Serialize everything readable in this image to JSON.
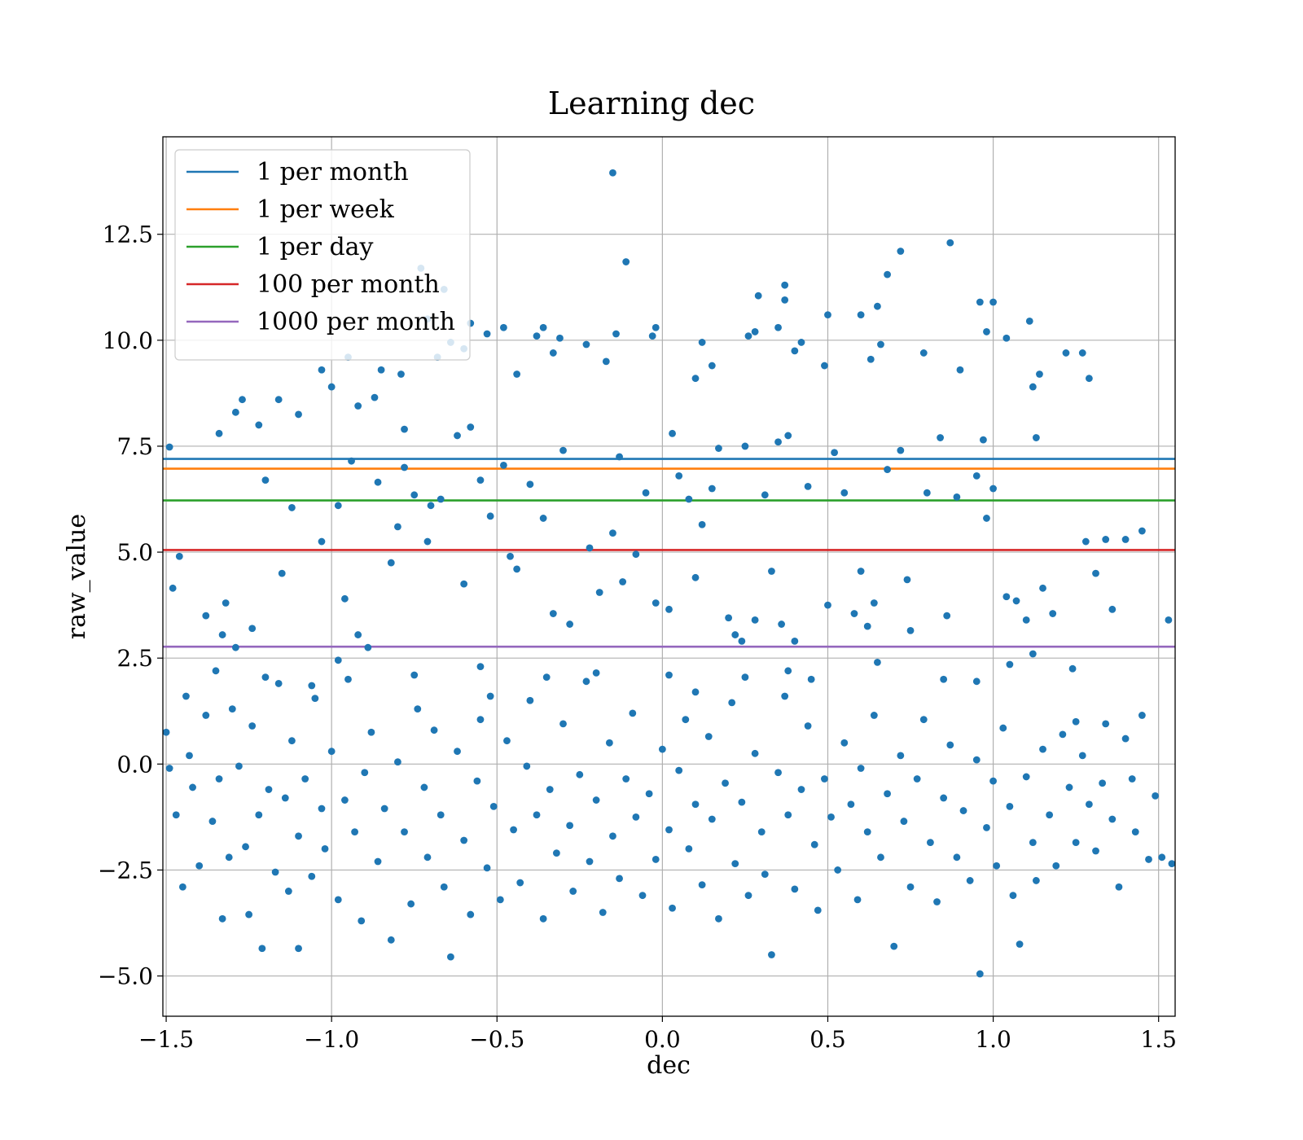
{
  "chart_data": {
    "type": "scatter",
    "title": "Learning dec",
    "xlabel": "dec",
    "ylabel": "raw_value",
    "xlim": [
      -1.51,
      1.55
    ],
    "ylim": [
      -5.95,
      14.8
    ],
    "grid": true,
    "legend_placement": "upper-left",
    "xticks": [
      {
        "value": -1.5,
        "label": "−1.5"
      },
      {
        "value": -1.0,
        "label": "−1.0"
      },
      {
        "value": -0.5,
        "label": "−0.5"
      },
      {
        "value": 0.0,
        "label": "0.0"
      },
      {
        "value": 0.5,
        "label": "0.5"
      },
      {
        "value": 1.0,
        "label": "1.0"
      },
      {
        "value": 1.5,
        "label": "1.5"
      }
    ],
    "yticks": [
      {
        "value": -5.0,
        "label": "−5.0"
      },
      {
        "value": -2.5,
        "label": "−2.5"
      },
      {
        "value": 0.0,
        "label": "0.0"
      },
      {
        "value": 2.5,
        "label": "2.5"
      },
      {
        "value": 5.0,
        "label": "5.0"
      },
      {
        "value": 7.5,
        "label": "7.5"
      },
      {
        "value": 10.0,
        "label": "10.0"
      },
      {
        "value": 12.5,
        "label": "12.5"
      }
    ],
    "reference_lines": [
      {
        "name": "1 per month",
        "y": 7.2,
        "color": "#1f77b4"
      },
      {
        "name": "1 per week",
        "y": 6.97,
        "color": "#ff7f0e"
      },
      {
        "name": "1 per day",
        "y": 6.22,
        "color": "#2ca02c"
      },
      {
        "name": "100 per month",
        "y": 5.05,
        "color": "#d62728"
      },
      {
        "name": "1000 per month",
        "y": 2.77,
        "color": "#9467bd"
      }
    ],
    "scatter_color": "#1f77b4",
    "scatter_points": [
      [
        -1.49,
        7.48
      ],
      [
        -1.46,
        4.9
      ],
      [
        -1.48,
        4.15
      ],
      [
        -1.34,
        7.8
      ],
      [
        -1.29,
        8.3
      ],
      [
        -1.27,
        8.6
      ],
      [
        -1.22,
        8.0
      ],
      [
        -1.16,
        8.6
      ],
      [
        -1.1,
        8.25
      ],
      [
        -1.03,
        9.3
      ],
      [
        -1.0,
        8.9
      ],
      [
        -0.95,
        9.6
      ],
      [
        -0.92,
        8.45
      ],
      [
        -0.87,
        8.65
      ],
      [
        -0.85,
        9.3
      ],
      [
        -0.79,
        9.2
      ],
      [
        -0.78,
        7.9
      ],
      [
        -0.73,
        11.7
      ],
      [
        -0.71,
        10.5
      ],
      [
        -0.68,
        9.6
      ],
      [
        -0.66,
        11.2
      ],
      [
        -0.64,
        9.95
      ],
      [
        -0.6,
        9.8
      ],
      [
        -0.58,
        10.4
      ],
      [
        -0.53,
        10.15
      ],
      [
        -0.48,
        10.3
      ],
      [
        -0.44,
        9.2
      ],
      [
        -0.38,
        10.1
      ],
      [
        -0.36,
        10.3
      ],
      [
        -0.33,
        9.7
      ],
      [
        -0.31,
        10.05
      ],
      [
        -0.23,
        9.9
      ],
      [
        -0.17,
        9.5
      ],
      [
        -0.15,
        13.95
      ],
      [
        -0.14,
        10.15
      ],
      [
        -0.11,
        11.85
      ],
      [
        -0.03,
        10.1
      ],
      [
        -0.02,
        10.3
      ],
      [
        0.1,
        9.1
      ],
      [
        0.12,
        9.95
      ],
      [
        0.15,
        9.4
      ],
      [
        0.26,
        10.1
      ],
      [
        0.28,
        10.2
      ],
      [
        0.29,
        11.05
      ],
      [
        0.35,
        10.3
      ],
      [
        0.37,
        11.3
      ],
      [
        0.37,
        10.95
      ],
      [
        0.4,
        9.75
      ],
      [
        0.42,
        9.95
      ],
      [
        0.49,
        9.4
      ],
      [
        0.5,
        10.6
      ],
      [
        0.6,
        10.6
      ],
      [
        0.63,
        9.55
      ],
      [
        0.65,
        10.8
      ],
      [
        0.66,
        9.9
      ],
      [
        0.68,
        11.55
      ],
      [
        0.72,
        12.1
      ],
      [
        0.79,
        9.7
      ],
      [
        0.87,
        12.3
      ],
      [
        0.9,
        9.3
      ],
      [
        0.96,
        10.9
      ],
      [
        0.98,
        10.2
      ],
      [
        1.0,
        10.9
      ],
      [
        1.04,
        10.05
      ],
      [
        1.11,
        10.45
      ],
      [
        1.12,
        8.9
      ],
      [
        1.14,
        9.2
      ],
      [
        1.22,
        9.7
      ],
      [
        1.27,
        9.7
      ],
      [
        1.29,
        9.1
      ],
      [
        -1.44,
        1.6
      ],
      [
        -1.38,
        3.5
      ],
      [
        -1.33,
        3.05
      ],
      [
        -1.32,
        3.8
      ],
      [
        -1.29,
        2.75
      ],
      [
        -1.24,
        3.2
      ],
      [
        -1.15,
        4.5
      ],
      [
        -1.03,
        5.25
      ],
      [
        -0.98,
        6.1
      ],
      [
        -0.96,
        3.9
      ],
      [
        -0.92,
        3.05
      ],
      [
        -0.89,
        2.75
      ],
      [
        -0.82,
        4.75
      ],
      [
        -0.8,
        5.6
      ],
      [
        -0.75,
        6.35
      ],
      [
        -0.71,
        5.25
      ],
      [
        -0.7,
        6.1
      ],
      [
        -0.67,
        6.25
      ],
      [
        -0.6,
        4.25
      ],
      [
        -0.55,
        6.7
      ],
      [
        -0.52,
        5.85
      ],
      [
        -0.48,
        7.05
      ],
      [
        -0.46,
        4.9
      ],
      [
        -0.44,
        4.6
      ],
      [
        -0.4,
        6.6
      ],
      [
        -0.36,
        5.8
      ],
      [
        -0.33,
        3.55
      ],
      [
        -0.28,
        3.3
      ],
      [
        -0.22,
        5.1
      ],
      [
        -0.19,
        4.05
      ],
      [
        -0.15,
        5.45
      ],
      [
        -0.12,
        4.3
      ],
      [
        -0.08,
        4.95
      ],
      [
        -0.05,
        6.4
      ],
      [
        -0.02,
        3.8
      ],
      [
        0.02,
        3.65
      ],
      [
        0.05,
        6.8
      ],
      [
        0.08,
        6.25
      ],
      [
        0.1,
        4.4
      ],
      [
        0.12,
        5.65
      ],
      [
        0.15,
        6.5
      ],
      [
        0.2,
        3.45
      ],
      [
        0.22,
        3.05
      ],
      [
        0.24,
        2.9
      ],
      [
        0.28,
        3.4
      ],
      [
        0.31,
        6.35
      ],
      [
        0.33,
        4.55
      ],
      [
        0.36,
        3.3
      ],
      [
        0.4,
        2.9
      ],
      [
        0.44,
        6.55
      ],
      [
        0.5,
        3.75
      ],
      [
        0.55,
        6.4
      ],
      [
        0.58,
        3.55
      ],
      [
        0.6,
        4.55
      ],
      [
        0.62,
        3.25
      ],
      [
        0.64,
        3.8
      ],
      [
        0.68,
        6.95
      ],
      [
        0.74,
        4.35
      ],
      [
        0.75,
        3.15
      ],
      [
        0.8,
        6.4
      ],
      [
        0.86,
        3.5
      ],
      [
        0.89,
        6.3
      ],
      [
        0.95,
        6.8
      ],
      [
        0.98,
        5.8
      ],
      [
        1.0,
        6.5
      ],
      [
        1.04,
        3.95
      ],
      [
        1.07,
        3.85
      ],
      [
        1.1,
        3.4
      ],
      [
        1.12,
        2.6
      ],
      [
        1.15,
        4.15
      ],
      [
        1.18,
        3.55
      ],
      [
        1.28,
        5.25
      ],
      [
        1.31,
        4.5
      ],
      [
        1.34,
        5.3
      ],
      [
        1.36,
        3.65
      ],
      [
        1.4,
        5.3
      ],
      [
        1.45,
        5.5
      ],
      [
        1.53,
        3.4
      ],
      [
        -1.2,
        6.7
      ],
      [
        -1.12,
        6.05
      ],
      [
        -0.94,
        7.15
      ],
      [
        -0.86,
        6.65
      ],
      [
        -0.78,
        7.0
      ],
      [
        -0.62,
        7.75
      ],
      [
        -0.58,
        7.95
      ],
      [
        -0.3,
        7.4
      ],
      [
        -0.13,
        7.25
      ],
      [
        0.03,
        7.8
      ],
      [
        0.17,
        7.45
      ],
      [
        0.25,
        7.5
      ],
      [
        0.35,
        7.6
      ],
      [
        0.38,
        7.75
      ],
      [
        0.52,
        7.35
      ],
      [
        0.72,
        7.4
      ],
      [
        0.84,
        7.7
      ],
      [
        0.97,
        7.65
      ],
      [
        1.13,
        7.7
      ],
      [
        -1.49,
        -0.1
      ],
      [
        -1.5,
        0.75
      ],
      [
        -1.47,
        -1.2
      ],
      [
        -1.45,
        -2.9
      ],
      [
        -1.43,
        0.2
      ],
      [
        -1.42,
        -0.55
      ],
      [
        -1.4,
        -2.4
      ],
      [
        -1.38,
        1.15
      ],
      [
        -1.36,
        -1.35
      ],
      [
        -1.34,
        -0.35
      ],
      [
        -1.33,
        -3.65
      ],
      [
        -1.31,
        -2.2
      ],
      [
        -1.3,
        1.3
      ],
      [
        -1.28,
        -0.05
      ],
      [
        -1.26,
        -1.95
      ],
      [
        -1.25,
        -3.55
      ],
      [
        -1.24,
        0.9
      ],
      [
        -1.22,
        -1.2
      ],
      [
        -1.21,
        -4.35
      ],
      [
        -1.19,
        -0.6
      ],
      [
        -1.17,
        -2.55
      ],
      [
        -1.16,
        1.9
      ],
      [
        -1.14,
        -0.8
      ],
      [
        -1.13,
        -3.0
      ],
      [
        -1.12,
        0.55
      ],
      [
        -1.1,
        -1.7
      ],
      [
        -1.1,
        -4.35
      ],
      [
        -1.08,
        -0.35
      ],
      [
        -1.06,
        -2.65
      ],
      [
        -1.05,
        1.55
      ],
      [
        -1.03,
        -1.05
      ],
      [
        -1.02,
        -2.0
      ],
      [
        -1.0,
        0.3
      ],
      [
        -0.98,
        -3.2
      ],
      [
        -0.96,
        -0.85
      ],
      [
        -0.95,
        2.0
      ],
      [
        -0.93,
        -1.6
      ],
      [
        -0.91,
        -3.7
      ],
      [
        -0.9,
        -0.2
      ],
      [
        -0.88,
        0.75
      ],
      [
        -0.86,
        -2.3
      ],
      [
        -0.84,
        -1.05
      ],
      [
        -0.82,
        -4.15
      ],
      [
        -0.8,
        0.05
      ],
      [
        -0.78,
        -1.6
      ],
      [
        -0.76,
        -3.3
      ],
      [
        -0.74,
        1.3
      ],
      [
        -0.72,
        -0.55
      ],
      [
        -0.71,
        -2.2
      ],
      [
        -0.69,
        0.8
      ],
      [
        -0.67,
        -1.2
      ],
      [
        -0.66,
        -2.9
      ],
      [
        -0.64,
        -4.55
      ],
      [
        -0.62,
        0.3
      ],
      [
        -0.6,
        -1.8
      ],
      [
        -0.58,
        -3.55
      ],
      [
        -0.56,
        -0.4
      ],
      [
        -0.55,
        1.05
      ],
      [
        -0.53,
        -2.45
      ],
      [
        -0.51,
        -1.0
      ],
      [
        -0.49,
        -3.2
      ],
      [
        -0.47,
        0.55
      ],
      [
        -0.45,
        -1.55
      ],
      [
        -0.43,
        -2.8
      ],
      [
        -0.41,
        -0.05
      ],
      [
        -0.4,
        1.5
      ],
      [
        -0.38,
        -1.2
      ],
      [
        -0.36,
        -3.65
      ],
      [
        -0.34,
        -0.6
      ],
      [
        -0.32,
        -2.1
      ],
      [
        -0.3,
        0.95
      ],
      [
        -0.28,
        -1.45
      ],
      [
        -0.27,
        -3.0
      ],
      [
        -0.25,
        -0.25
      ],
      [
        -0.23,
        1.95
      ],
      [
        -0.22,
        -2.3
      ],
      [
        -0.2,
        -0.85
      ],
      [
        -0.18,
        -3.5
      ],
      [
        -0.16,
        0.5
      ],
      [
        -0.15,
        -1.7
      ],
      [
        -0.13,
        -2.7
      ],
      [
        -0.11,
        -0.35
      ],
      [
        -0.09,
        1.2
      ],
      [
        -0.08,
        -1.25
      ],
      [
        -0.06,
        -3.1
      ],
      [
        -0.04,
        -0.7
      ],
      [
        -0.02,
        -2.25
      ],
      [
        0.0,
        0.35
      ],
      [
        0.02,
        -1.55
      ],
      [
        0.03,
        -3.4
      ],
      [
        0.05,
        -0.15
      ],
      [
        0.07,
        1.05
      ],
      [
        0.08,
        -2.0
      ],
      [
        0.1,
        -0.95
      ],
      [
        0.12,
        -2.85
      ],
      [
        0.14,
        0.65
      ],
      [
        0.15,
        -1.3
      ],
      [
        0.17,
        -3.65
      ],
      [
        0.19,
        -0.45
      ],
      [
        0.21,
        1.45
      ],
      [
        0.22,
        -2.35
      ],
      [
        0.24,
        -0.9
      ],
      [
        0.26,
        -3.1
      ],
      [
        0.28,
        0.25
      ],
      [
        0.3,
        -1.6
      ],
      [
        0.31,
        -2.6
      ],
      [
        0.33,
        -4.5
      ],
      [
        0.35,
        -0.2
      ],
      [
        0.37,
        1.6
      ],
      [
        0.38,
        -1.2
      ],
      [
        0.4,
        -2.95
      ],
      [
        0.42,
        -0.6
      ],
      [
        0.44,
        0.9
      ],
      [
        0.46,
        -1.9
      ],
      [
        0.47,
        -3.45
      ],
      [
        0.49,
        -0.35
      ],
      [
        0.51,
        -1.25
      ],
      [
        0.53,
        -2.5
      ],
      [
        0.55,
        0.5
      ],
      [
        0.57,
        -0.95
      ],
      [
        0.59,
        -3.2
      ],
      [
        0.6,
        -0.1
      ],
      [
        0.62,
        -1.6
      ],
      [
        0.64,
        1.15
      ],
      [
        0.66,
        -2.2
      ],
      [
        0.68,
        -0.7
      ],
      [
        0.7,
        -4.3
      ],
      [
        0.72,
        0.2
      ],
      [
        0.73,
        -1.35
      ],
      [
        0.75,
        -2.9
      ],
      [
        0.77,
        -0.35
      ],
      [
        0.79,
        1.05
      ],
      [
        0.81,
        -1.85
      ],
      [
        0.83,
        -3.25
      ],
      [
        0.85,
        -0.8
      ],
      [
        0.87,
        0.45
      ],
      [
        0.89,
        -2.2
      ],
      [
        0.91,
        -1.1
      ],
      [
        0.93,
        -2.75
      ],
      [
        0.95,
        0.1
      ],
      [
        0.96,
        -4.95
      ],
      [
        0.98,
        -1.5
      ],
      [
        1.0,
        -0.4
      ],
      [
        1.01,
        -2.4
      ],
      [
        1.03,
        0.85
      ],
      [
        1.05,
        -1.0
      ],
      [
        1.06,
        -3.1
      ],
      [
        1.08,
        -4.25
      ],
      [
        1.1,
        -0.3
      ],
      [
        1.12,
        -1.85
      ],
      [
        1.13,
        -2.75
      ],
      [
        1.15,
        0.35
      ],
      [
        1.17,
        -1.2
      ],
      [
        1.19,
        -2.4
      ],
      [
        1.21,
        0.7
      ],
      [
        1.23,
        -0.55
      ],
      [
        1.25,
        -1.85
      ],
      [
        1.27,
        0.2
      ],
      [
        1.29,
        -0.95
      ],
      [
        1.31,
        -2.05
      ],
      [
        1.33,
        -0.45
      ],
      [
        1.34,
        0.95
      ],
      [
        1.36,
        -1.3
      ],
      [
        1.38,
        -2.9
      ],
      [
        1.4,
        0.6
      ],
      [
        1.42,
        -0.35
      ],
      [
        1.43,
        -1.6
      ],
      [
        1.45,
        1.15
      ],
      [
        1.47,
        -2.25
      ],
      [
        1.49,
        -0.75
      ],
      [
        1.51,
        -2.2
      ],
      [
        1.54,
        -2.35
      ],
      [
        -1.2,
        2.05
      ],
      [
        -0.98,
        2.45
      ],
      [
        -0.75,
        2.1
      ],
      [
        -0.55,
        2.3
      ],
      [
        -0.35,
        2.05
      ],
      [
        -0.2,
        2.15
      ],
      [
        0.02,
        2.1
      ],
      [
        0.25,
        2.05
      ],
      [
        0.45,
        2.0
      ],
      [
        0.65,
        2.4
      ],
      [
        0.85,
        2.0
      ],
      [
        1.05,
        2.35
      ],
      [
        1.24,
        2.25
      ],
      [
        -1.35,
        2.2
      ],
      [
        -1.06,
        1.85
      ],
      [
        -0.52,
        1.6
      ],
      [
        0.1,
        1.7
      ],
      [
        0.38,
        2.2
      ],
      [
        0.95,
        1.95
      ],
      [
        1.25,
        1.0
      ]
    ]
  }
}
